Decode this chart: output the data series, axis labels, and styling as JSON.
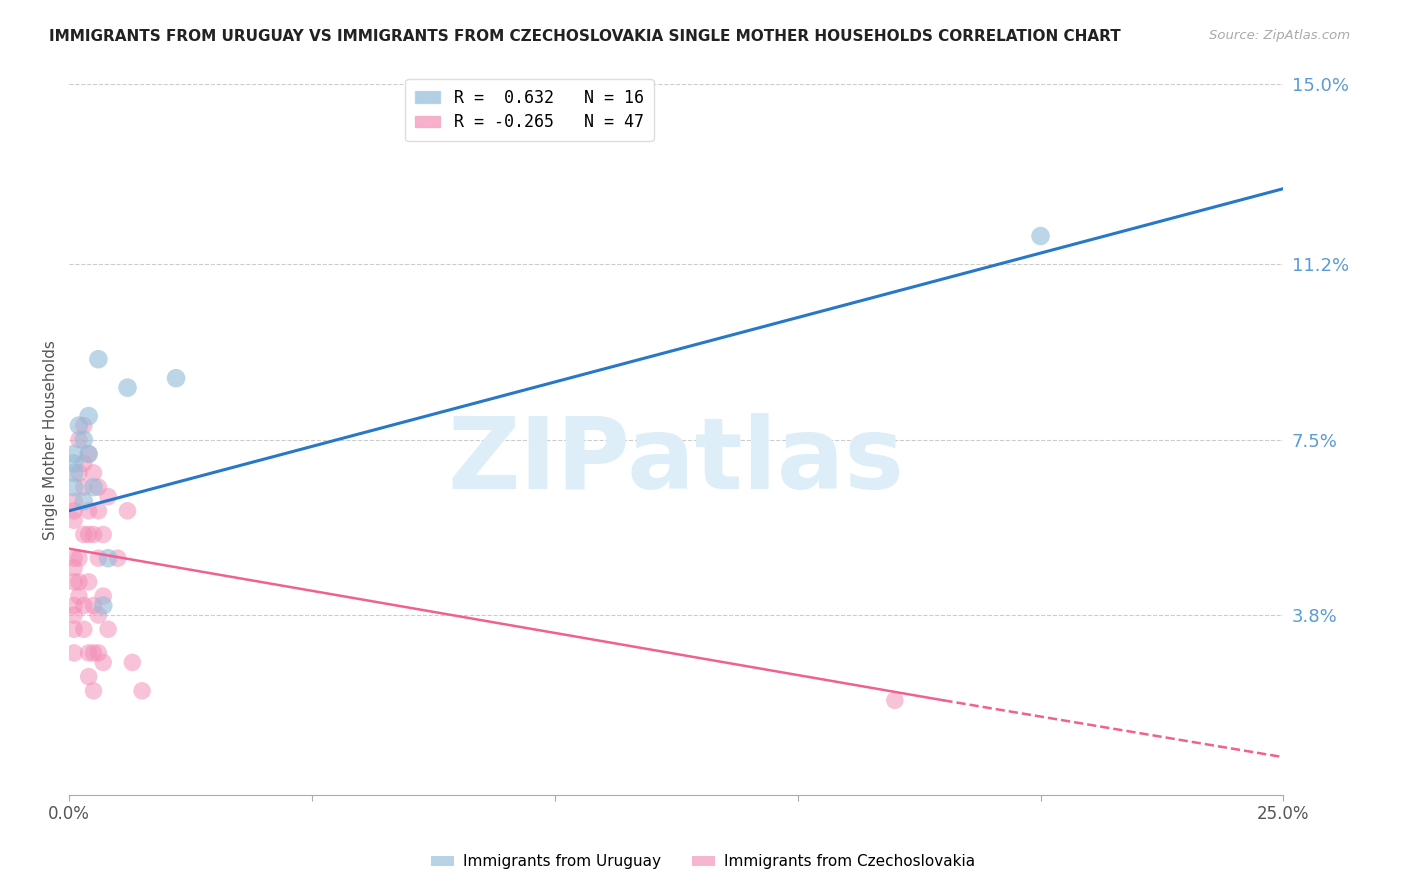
{
  "title": "IMMIGRANTS FROM URUGUAY VS IMMIGRANTS FROM CZECHOSLOVAKIA SINGLE MOTHER HOUSEHOLDS CORRELATION CHART",
  "source": "Source: ZipAtlas.com",
  "ylabel": "Single Mother Households",
  "xlim": [
    0.0,
    0.25
  ],
  "ylim": [
    0.0,
    0.15
  ],
  "yticks": [
    0.038,
    0.075,
    0.112,
    0.15
  ],
  "ytick_labels": [
    "3.8%",
    "7.5%",
    "11.2%",
    "15.0%"
  ],
  "xticks": [
    0.0,
    0.05,
    0.1,
    0.15,
    0.2,
    0.25
  ],
  "xtick_labels": [
    "0.0%",
    "",
    "",
    "",
    "",
    "25.0%"
  ],
  "legend_r1": "R =  0.632   N = 16",
  "legend_r2": "R = -0.265   N = 47",
  "uruguay_color": "#92bcd8",
  "czechoslovakia_color": "#f490b8",
  "line_uruguay_color": "#2878c8",
  "line_czechoslovakia_color": "#f06090",
  "background_color": "#ffffff",
  "grid_color": "#cccccc",
  "watermark": "ZIPatlas",
  "watermark_color": "#ddeef8",
  "uruguay_points": [
    [
      0.001,
      0.068
    ],
    [
      0.001,
      0.072
    ],
    [
      0.001,
      0.065
    ],
    [
      0.001,
      0.07
    ],
    [
      0.002,
      0.078
    ],
    [
      0.003,
      0.075
    ],
    [
      0.003,
      0.062
    ],
    [
      0.004,
      0.08
    ],
    [
      0.004,
      0.072
    ],
    [
      0.005,
      0.065
    ],
    [
      0.006,
      0.092
    ],
    [
      0.007,
      0.04
    ],
    [
      0.008,
      0.05
    ],
    [
      0.012,
      0.086
    ],
    [
      0.022,
      0.088
    ],
    [
      0.2,
      0.118
    ]
  ],
  "czechoslovakia_points": [
    [
      0.001,
      0.05
    ],
    [
      0.001,
      0.048
    ],
    [
      0.001,
      0.045
    ],
    [
      0.001,
      0.058
    ],
    [
      0.001,
      0.06
    ],
    [
      0.001,
      0.062
    ],
    [
      0.001,
      0.04
    ],
    [
      0.001,
      0.035
    ],
    [
      0.001,
      0.038
    ],
    [
      0.001,
      0.03
    ],
    [
      0.002,
      0.075
    ],
    [
      0.002,
      0.068
    ],
    [
      0.002,
      0.05
    ],
    [
      0.002,
      0.045
    ],
    [
      0.002,
      0.042
    ],
    [
      0.003,
      0.078
    ],
    [
      0.003,
      0.07
    ],
    [
      0.003,
      0.065
    ],
    [
      0.003,
      0.055
    ],
    [
      0.003,
      0.04
    ],
    [
      0.003,
      0.035
    ],
    [
      0.004,
      0.072
    ],
    [
      0.004,
      0.06
    ],
    [
      0.004,
      0.055
    ],
    [
      0.004,
      0.045
    ],
    [
      0.004,
      0.03
    ],
    [
      0.004,
      0.025
    ],
    [
      0.005,
      0.068
    ],
    [
      0.005,
      0.055
    ],
    [
      0.005,
      0.04
    ],
    [
      0.005,
      0.03
    ],
    [
      0.005,
      0.022
    ],
    [
      0.006,
      0.065
    ],
    [
      0.006,
      0.06
    ],
    [
      0.006,
      0.05
    ],
    [
      0.006,
      0.038
    ],
    [
      0.006,
      0.03
    ],
    [
      0.007,
      0.055
    ],
    [
      0.007,
      0.042
    ],
    [
      0.007,
      0.028
    ],
    [
      0.008,
      0.063
    ],
    [
      0.008,
      0.035
    ],
    [
      0.01,
      0.05
    ],
    [
      0.012,
      0.06
    ],
    [
      0.013,
      0.028
    ],
    [
      0.015,
      0.022
    ],
    [
      0.17,
      0.02
    ]
  ],
  "uruguay_line": {
    "x0": 0.0,
    "y0": 0.06,
    "x1": 0.25,
    "y1": 0.128
  },
  "czechoslovakia_line_solid": {
    "x0": 0.0,
    "y0": 0.052,
    "x1": 0.18,
    "y1": 0.02
  },
  "czechoslovakia_line_dashed": {
    "x0": 0.18,
    "y0": 0.02,
    "x1": 0.25,
    "y1": 0.008
  }
}
